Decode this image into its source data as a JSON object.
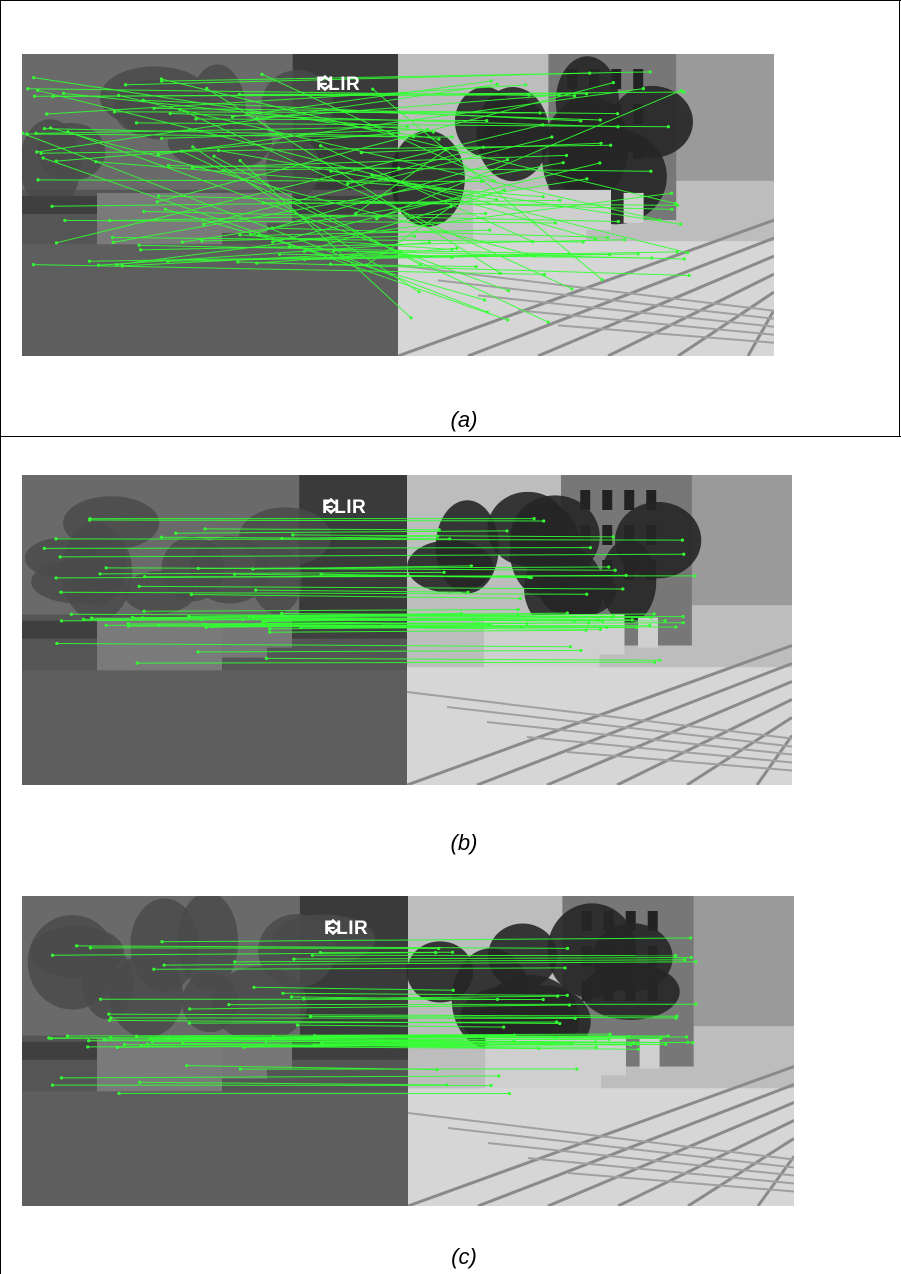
{
  "figure": {
    "panels": [
      {
        "id": "a",
        "caption": "(a)",
        "logo": "FLIR",
        "variant": "dense"
      },
      {
        "id": "b",
        "caption": "(b)",
        "logo": "FLIR",
        "variant": "sparse"
      },
      {
        "id": "c",
        "caption": "(c)",
        "logo": "FLIR",
        "variant": "sparse"
      }
    ],
    "colors": {
      "match_line": "#33ff33",
      "thermal_bg": "#5a5a5a",
      "visible_sky": "#9a9a9a"
    }
  }
}
